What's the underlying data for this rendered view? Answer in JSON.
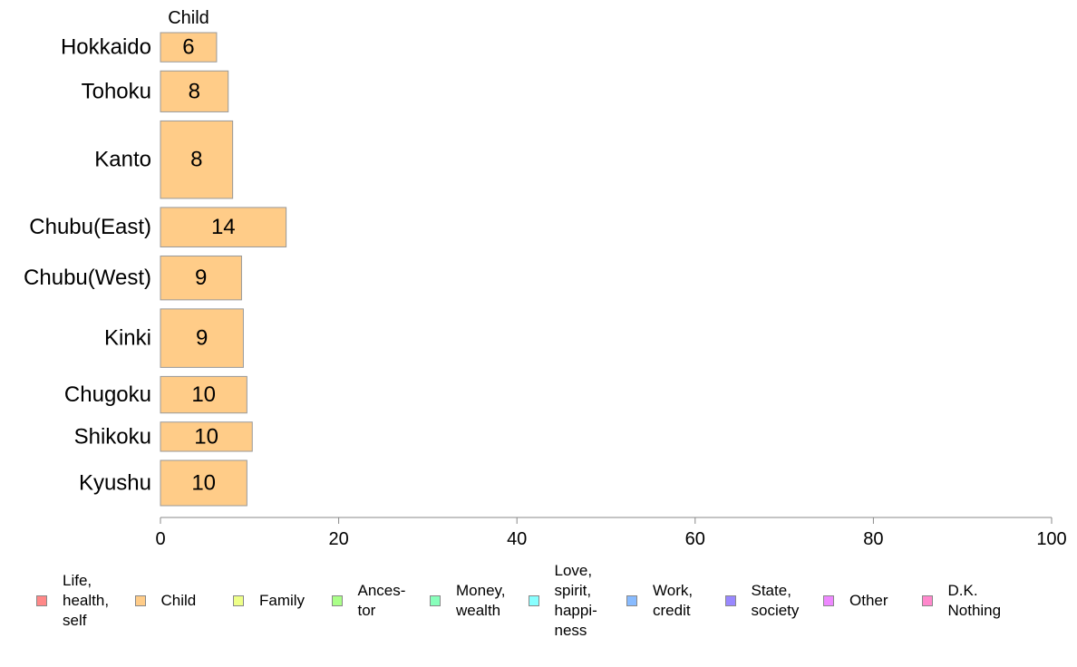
{
  "chart_data": {
    "type": "bar",
    "orientation": "horizontal",
    "series_header": "Child",
    "categories": [
      "Hokkaido",
      "Tohoku",
      "Kanto",
      "Chubu(East)",
      "Chubu(West)",
      "Kinki",
      "Chugoku",
      "Shikoku",
      "Kyushu"
    ],
    "series": [
      {
        "name": "Child",
        "color": "#FFCC88",
        "values": [
          6.3,
          7.6,
          8.1,
          14.1,
          9.1,
          9.3,
          9.7,
          10.3,
          9.7
        ],
        "labels": [
          "6",
          "8",
          "8",
          "14",
          "9",
          "9",
          "10",
          "10",
          "10"
        ]
      }
    ],
    "relative_bar_thickness": [
      1.0,
      1.4,
      2.65,
      1.35,
      1.5,
      2.0,
      1.25,
      1.0,
      1.55
    ],
    "xlim": [
      0,
      100
    ],
    "xticks": [
      "0",
      "20",
      "40",
      "60",
      "80",
      "100"
    ],
    "grid": false,
    "legend_position": "bottom",
    "legend": [
      {
        "label": "Life,\nhealth,\nself",
        "color": "#FF8888"
      },
      {
        "label": "Child",
        "color": "#FFCC88"
      },
      {
        "label": "Family",
        "color": "#EEFF88"
      },
      {
        "label": "Ances-\ntor",
        "color": "#AAFF88"
      },
      {
        "label": "Money,\nwealth",
        "color": "#88FFBB"
      },
      {
        "label": "Love,\nspirit,\nhappi-\nness",
        "color": "#88FFFF"
      },
      {
        "label": "Work,\ncredit",
        "color": "#88BBFF"
      },
      {
        "label": "State,\nsociety",
        "color": "#9988FF"
      },
      {
        "label": "Other",
        "color": "#EE88FF"
      },
      {
        "label": "D.K.\nNothing",
        "color": "#FF88CC"
      }
    ]
  }
}
